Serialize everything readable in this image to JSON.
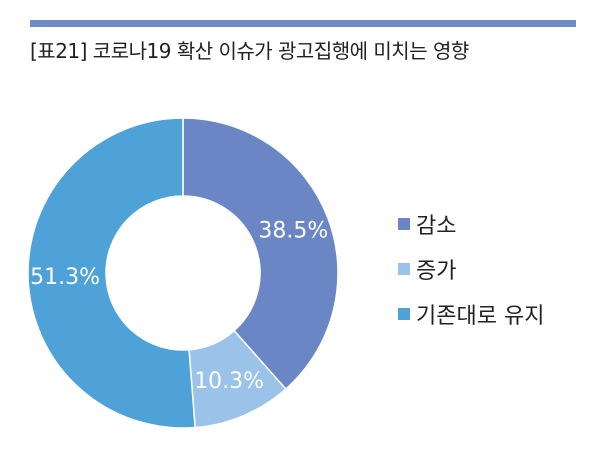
{
  "title": "[표21] 코로나19 확산 이슈가 광고집행에 미치는 영향",
  "colors": {
    "accent_bar": "#6f8cc6"
  },
  "chart_data": {
    "type": "pie",
    "title": "[표21] 코로나19 확산 이슈가 광고집행에 미치는 영향",
    "donut": true,
    "legend_position": "right",
    "categories": [
      "감소",
      "증가",
      "기존대로 유지"
    ],
    "values": [
      38.5,
      10.3,
      51.3
    ],
    "labels": [
      "38.5%",
      "10.3%",
      "51.3%"
    ],
    "colors": [
      "#6a86c4",
      "#9bc2e8",
      "#4fa2d8"
    ]
  }
}
